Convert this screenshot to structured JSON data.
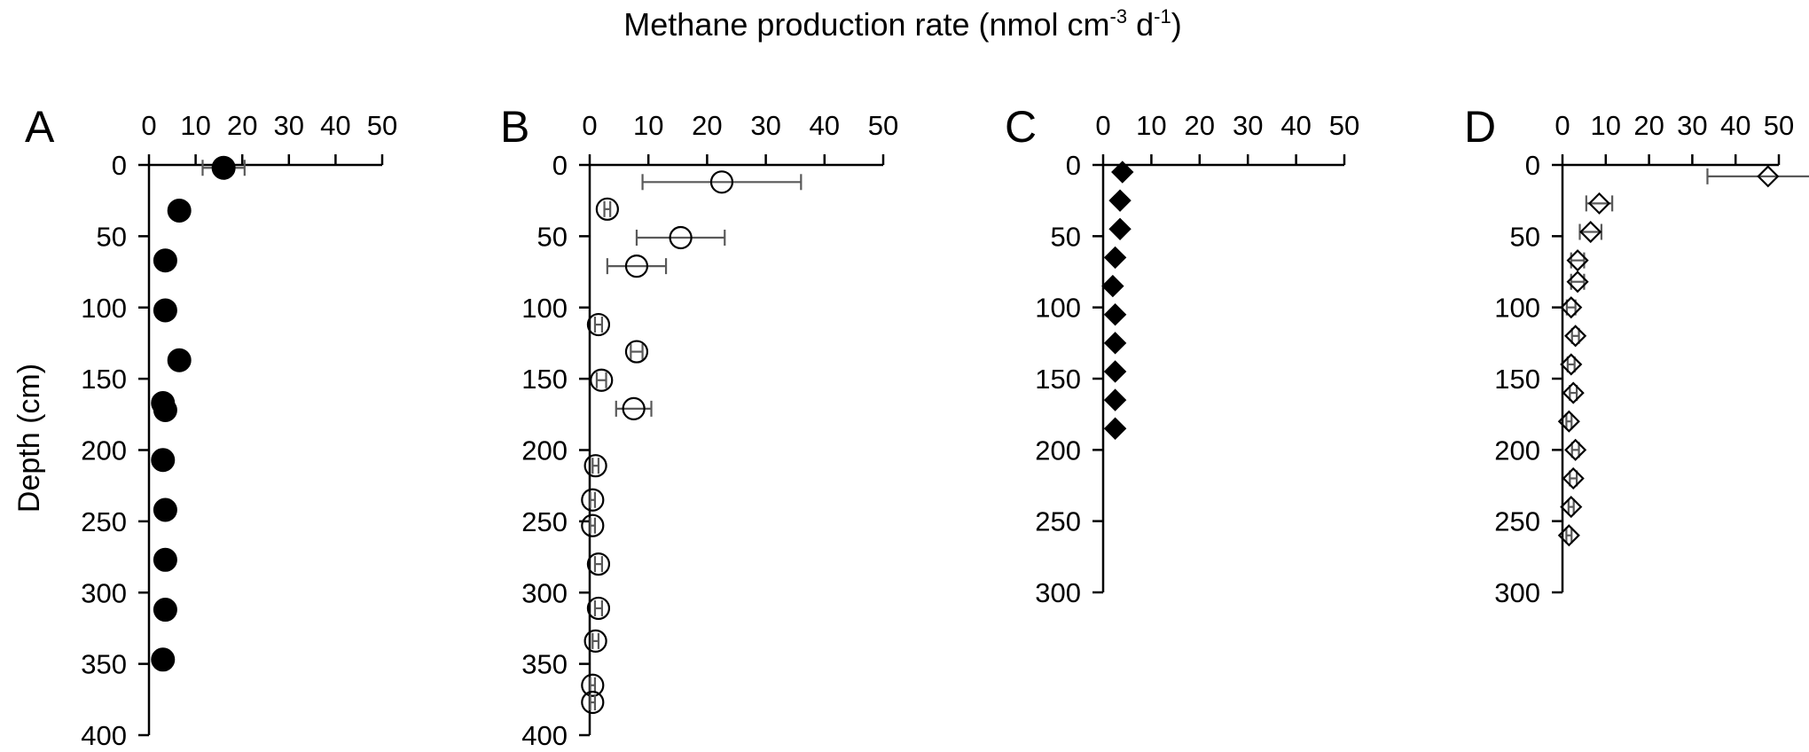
{
  "figure": {
    "title": "Methane production rate (nmol cm",
    "title_sup1": "-3",
    "title_mid": " d",
    "title_sup2": "-1",
    "title_end": ")",
    "ylabel": "Depth (cm)"
  },
  "chart_data": [
    {
      "panel": "A",
      "type": "scatter",
      "marker": "filled-circle",
      "xticks": [
        "0",
        "10",
        "20",
        "30",
        "40",
        "50"
      ],
      "yticks": [
        "0",
        "50",
        "100",
        "150",
        "200",
        "250",
        "300",
        "350",
        "400"
      ],
      "xlim": [
        0,
        50
      ],
      "ylim": [
        0,
        400
      ],
      "points": [
        {
          "x": 16,
          "y": 2,
          "err": 4.5
        },
        {
          "x": 6.5,
          "y": 32,
          "err": 0
        },
        {
          "x": 3.5,
          "y": 67,
          "err": 0
        },
        {
          "x": 3.5,
          "y": 102,
          "err": 0
        },
        {
          "x": 6.5,
          "y": 137,
          "err": 0
        },
        {
          "x": 3,
          "y": 167,
          "err": 0
        },
        {
          "x": 3.5,
          "y": 172,
          "err": 0
        },
        {
          "x": 3,
          "y": 207,
          "err": 0
        },
        {
          "x": 3.5,
          "y": 242,
          "err": 0
        },
        {
          "x": 3.5,
          "y": 277,
          "err": 0
        },
        {
          "x": 3.5,
          "y": 312,
          "err": 0
        },
        {
          "x": 3,
          "y": 347,
          "err": 0
        }
      ]
    },
    {
      "panel": "B",
      "type": "scatter",
      "marker": "open-circle",
      "xticks": [
        "0",
        "10",
        "20",
        "30",
        "40",
        "50"
      ],
      "yticks": [
        "0",
        "50",
        "100",
        "150",
        "200",
        "250",
        "300",
        "350",
        "400"
      ],
      "xlim": [
        0,
        50
      ],
      "ylim": [
        0,
        400
      ],
      "points": [
        {
          "x": 22.5,
          "y": 12,
          "err": 13.5
        },
        {
          "x": 3,
          "y": 31,
          "err": 0.5
        },
        {
          "x": 15.5,
          "y": 51,
          "err": 7.5
        },
        {
          "x": 8,
          "y": 71,
          "err": 5
        },
        {
          "x": 1.5,
          "y": 112,
          "err": 0.6
        },
        {
          "x": 8,
          "y": 131,
          "err": 1
        },
        {
          "x": 2,
          "y": 151,
          "err": 0.8
        },
        {
          "x": 7.5,
          "y": 171,
          "err": 3
        },
        {
          "x": 1,
          "y": 211,
          "err": 0.5
        },
        {
          "x": 0.5,
          "y": 235,
          "err": 0.4
        },
        {
          "x": 0.5,
          "y": 253,
          "err": 0.4
        },
        {
          "x": 1.5,
          "y": 280,
          "err": 0.6
        },
        {
          "x": 1.5,
          "y": 311,
          "err": 0.6
        },
        {
          "x": 1,
          "y": 334,
          "err": 0.5
        },
        {
          "x": 0.5,
          "y": 365,
          "err": 0.4
        },
        {
          "x": 0.5,
          "y": 377,
          "err": 0.4
        }
      ]
    },
    {
      "panel": "C",
      "type": "scatter",
      "marker": "filled-diamond",
      "xticks": [
        "0",
        "10",
        "20",
        "30",
        "40",
        "50"
      ],
      "yticks": [
        "0",
        "50",
        "100",
        "150",
        "200",
        "250",
        "300"
      ],
      "xlim": [
        0,
        50
      ],
      "ylim": [
        0,
        300
      ],
      "points": [
        {
          "x": 4,
          "y": 5,
          "err": 0
        },
        {
          "x": 3.5,
          "y": 25,
          "err": 0
        },
        {
          "x": 3.5,
          "y": 45,
          "err": 0
        },
        {
          "x": 2.5,
          "y": 65,
          "err": 0
        },
        {
          "x": 2,
          "y": 85,
          "err": 0
        },
        {
          "x": 2.5,
          "y": 105,
          "err": 0
        },
        {
          "x": 2.5,
          "y": 125,
          "err": 0
        },
        {
          "x": 2.5,
          "y": 145,
          "err": 0
        },
        {
          "x": 2.5,
          "y": 165,
          "err": 0
        },
        {
          "x": 2.5,
          "y": 185,
          "err": 0
        }
      ]
    },
    {
      "panel": "D",
      "type": "scatter",
      "marker": "open-diamond",
      "xticks": [
        "0",
        "10",
        "20",
        "30",
        "40",
        "50"
      ],
      "yticks": [
        "0",
        "50",
        "100",
        "150",
        "200",
        "250",
        "300"
      ],
      "xlim": [
        0,
        50
      ],
      "ylim": [
        0,
        300
      ],
      "points": [
        {
          "x": 47.5,
          "y": 8,
          "err": 14
        },
        {
          "x": 8.5,
          "y": 27,
          "err": 3
        },
        {
          "x": 6.5,
          "y": 47,
          "err": 2.5
        },
        {
          "x": 3.5,
          "y": 67,
          "err": 1.5
        },
        {
          "x": 3.5,
          "y": 82,
          "err": 1.5
        },
        {
          "x": 2,
          "y": 100,
          "err": 1
        },
        {
          "x": 3,
          "y": 120,
          "err": 0.8
        },
        {
          "x": 2,
          "y": 140,
          "err": 0.8
        },
        {
          "x": 2.5,
          "y": 160,
          "err": 0.8
        },
        {
          "x": 1.5,
          "y": 180,
          "err": 0.6
        },
        {
          "x": 3,
          "y": 200,
          "err": 0.8
        },
        {
          "x": 2.5,
          "y": 220,
          "err": 0.8
        },
        {
          "x": 2,
          "y": 240,
          "err": 0.6
        },
        {
          "x": 1.5,
          "y": 260,
          "err": 0.6
        }
      ]
    }
  ]
}
